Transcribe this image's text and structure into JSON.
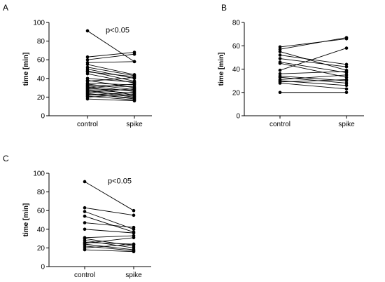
{
  "chart_data": [
    {
      "panel_label": "A",
      "type": "scatter",
      "subtype": "paired-lines",
      "categories": [
        "control",
        "spike"
      ],
      "ylabel": "time [min]",
      "ylim": [
        0,
        100
      ],
      "yticks": [
        0,
        20,
        40,
        60,
        80,
        100
      ],
      "annotation": "p<0.05",
      "pairs": [
        [
          91,
          58
        ],
        [
          63,
          68
        ],
        [
          60,
          66
        ],
        [
          57,
          58
        ],
        [
          55,
          44
        ],
        [
          52,
          43
        ],
        [
          50,
          40
        ],
        [
          48,
          37
        ],
        [
          47,
          42
        ],
        [
          45,
          35
        ],
        [
          40,
          36
        ],
        [
          38,
          30
        ],
        [
          37,
          41
        ],
        [
          35,
          33
        ],
        [
          34,
          28
        ],
        [
          33,
          31
        ],
        [
          32,
          26
        ],
        [
          31,
          22
        ],
        [
          30,
          34
        ],
        [
          29,
          27
        ],
        [
          28,
          24
        ],
        [
          27,
          21
        ],
        [
          26,
          20
        ],
        [
          25,
          29
        ],
        [
          24,
          18
        ],
        [
          23,
          19
        ],
        [
          22,
          25
        ],
        [
          21,
          17
        ],
        [
          20,
          23
        ],
        [
          18,
          16
        ]
      ]
    },
    {
      "panel_label": "B",
      "type": "scatter",
      "subtype": "paired-lines",
      "categories": [
        "control",
        "spike"
      ],
      "ylabel": "time [min]",
      "ylim": [
        0,
        80
      ],
      "yticks": [
        0,
        20,
        40,
        60,
        80
      ],
      "annotation": "",
      "pairs": [
        [
          59,
          66
        ],
        [
          57,
          67
        ],
        [
          55,
          39
        ],
        [
          52,
          44
        ],
        [
          49,
          42
        ],
        [
          46,
          37
        ],
        [
          45,
          33
        ],
        [
          39,
          58
        ],
        [
          36,
          38
        ],
        [
          34,
          30
        ],
        [
          33,
          28
        ],
        [
          31,
          35
        ],
        [
          30,
          26
        ],
        [
          29,
          31
        ],
        [
          28,
          23
        ],
        [
          20,
          20
        ]
      ]
    },
    {
      "panel_label": "C",
      "type": "scatter",
      "subtype": "paired-lines",
      "categories": [
        "control",
        "spike"
      ],
      "ylabel": "time [min]",
      "ylim": [
        0,
        100
      ],
      "yticks": [
        0,
        20,
        40,
        60,
        80,
        100
      ],
      "annotation": "p<0.05",
      "pairs": [
        [
          91,
          60
        ],
        [
          63,
          55
        ],
        [
          59,
          40
        ],
        [
          54,
          37
        ],
        [
          47,
          42
        ],
        [
          40,
          36
        ],
        [
          31,
          33
        ],
        [
          30,
          22
        ],
        [
          28,
          20
        ],
        [
          26,
          24
        ],
        [
          25,
          31
        ],
        [
          24,
          18
        ],
        [
          22,
          17
        ],
        [
          20,
          24
        ],
        [
          18,
          16
        ]
      ]
    }
  ]
}
